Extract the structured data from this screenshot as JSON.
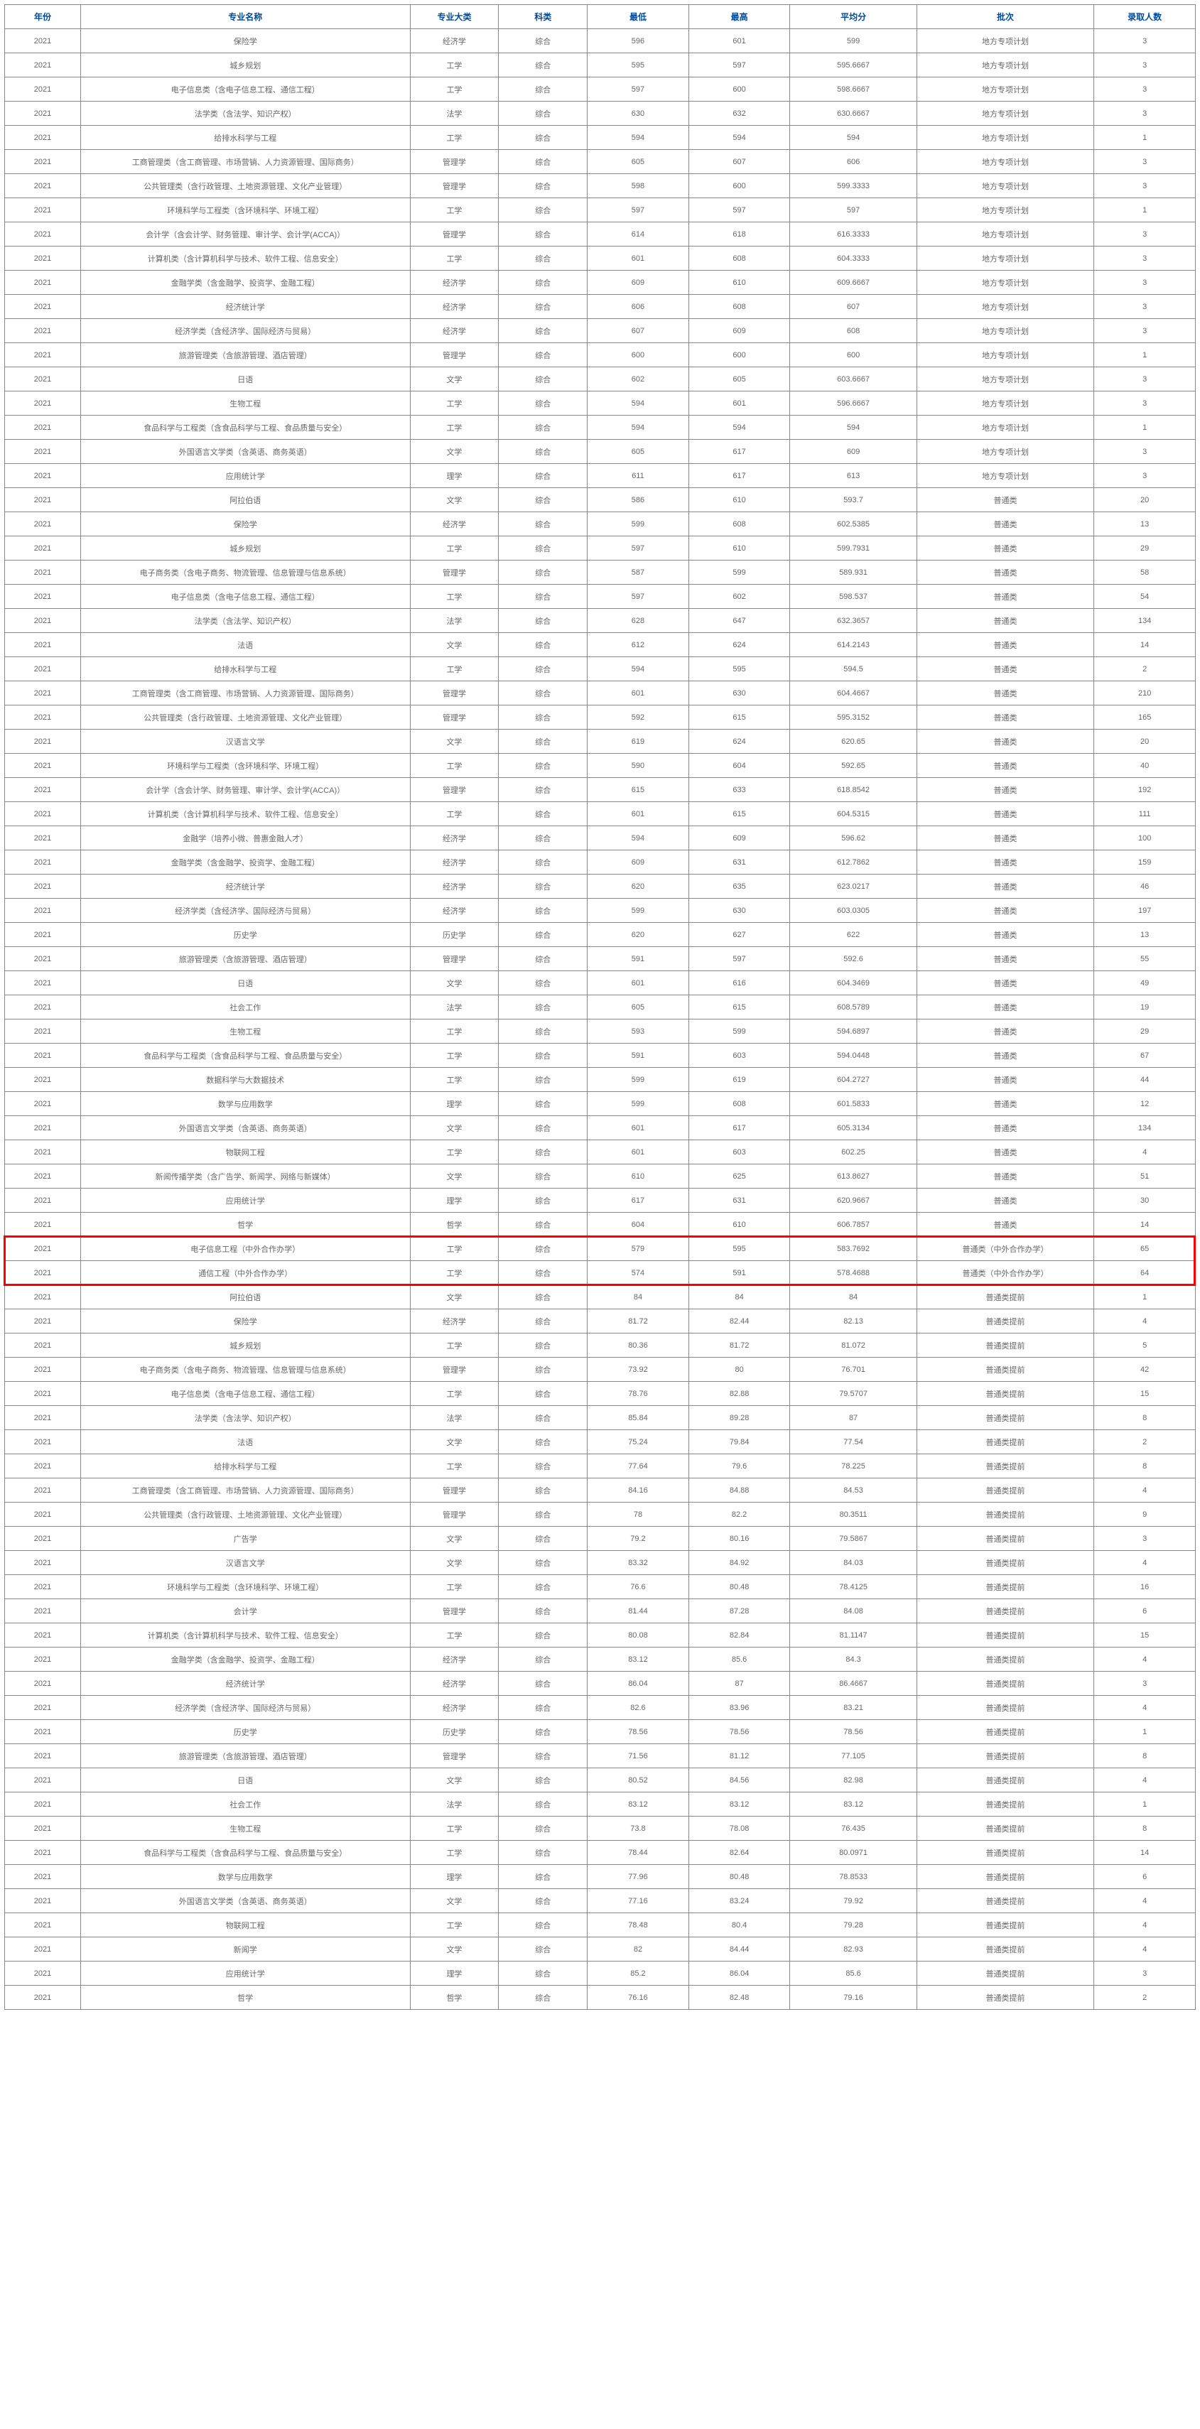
{
  "columns": [
    "年份",
    "专业名称",
    "专业大类",
    "科类",
    "最低",
    "最高",
    "平均分",
    "批次",
    "录取人数"
  ],
  "highlightStart": 56,
  "highlightCount": 2,
  "rows": [
    [
      "2021",
      "保险学",
      "经济学",
      "综合",
      "596",
      "601",
      "599",
      "地方专项计划",
      "3"
    ],
    [
      "2021",
      "城乡规划",
      "工学",
      "综合",
      "595",
      "597",
      "595.6667",
      "地方专项计划",
      "3"
    ],
    [
      "2021",
      "电子信息类（含电子信息工程、通信工程）",
      "工学",
      "综合",
      "597",
      "600",
      "598.6667",
      "地方专项计划",
      "3"
    ],
    [
      "2021",
      "法学类（含法学、知识产权）",
      "法学",
      "综合",
      "630",
      "632",
      "630.6667",
      "地方专项计划",
      "3"
    ],
    [
      "2021",
      "给排水科学与工程",
      "工学",
      "综合",
      "594",
      "594",
      "594",
      "地方专项计划",
      "1"
    ],
    [
      "2021",
      "工商管理类（含工商管理、市场营销、人力资源管理、国际商务）",
      "管理学",
      "综合",
      "605",
      "607",
      "606",
      "地方专项计划",
      "3"
    ],
    [
      "2021",
      "公共管理类（含行政管理、土地资源管理、文化产业管理）",
      "管理学",
      "综合",
      "598",
      "600",
      "599.3333",
      "地方专项计划",
      "3"
    ],
    [
      "2021",
      "环境科学与工程类（含环境科学、环境工程）",
      "工学",
      "综合",
      "597",
      "597",
      "597",
      "地方专项计划",
      "1"
    ],
    [
      "2021",
      "会计学（含会计学、财务管理、审计学、会计学(ACCA)）",
      "管理学",
      "综合",
      "614",
      "618",
      "616.3333",
      "地方专项计划",
      "3"
    ],
    [
      "2021",
      "计算机类（含计算机科学与技术、软件工程、信息安全）",
      "工学",
      "综合",
      "601",
      "608",
      "604.3333",
      "地方专项计划",
      "3"
    ],
    [
      "2021",
      "金融学类（含金融学、投资学、金融工程）",
      "经济学",
      "综合",
      "609",
      "610",
      "609.6667",
      "地方专项计划",
      "3"
    ],
    [
      "2021",
      "经济统计学",
      "经济学",
      "综合",
      "606",
      "608",
      "607",
      "地方专项计划",
      "3"
    ],
    [
      "2021",
      "经济学类（含经济学、国际经济与贸易）",
      "经济学",
      "综合",
      "607",
      "609",
      "608",
      "地方专项计划",
      "3"
    ],
    [
      "2021",
      "旅游管理类（含旅游管理、酒店管理）",
      "管理学",
      "综合",
      "600",
      "600",
      "600",
      "地方专项计划",
      "1"
    ],
    [
      "2021",
      "日语",
      "文学",
      "综合",
      "602",
      "605",
      "603.6667",
      "地方专项计划",
      "3"
    ],
    [
      "2021",
      "生物工程",
      "工学",
      "综合",
      "594",
      "601",
      "596.6667",
      "地方专项计划",
      "3"
    ],
    [
      "2021",
      "食品科学与工程类（含食品科学与工程、食品质量与安全）",
      "工学",
      "综合",
      "594",
      "594",
      "594",
      "地方专项计划",
      "1"
    ],
    [
      "2021",
      "外国语言文学类（含英语、商务英语）",
      "文学",
      "综合",
      "605",
      "617",
      "609",
      "地方专项计划",
      "3"
    ],
    [
      "2021",
      "应用统计学",
      "理学",
      "综合",
      "611",
      "617",
      "613",
      "地方专项计划",
      "3"
    ],
    [
      "2021",
      "阿拉伯语",
      "文学",
      "综合",
      "586",
      "610",
      "593.7",
      "普通类",
      "20"
    ],
    [
      "2021",
      "保险学",
      "经济学",
      "综合",
      "599",
      "608",
      "602.5385",
      "普通类",
      "13"
    ],
    [
      "2021",
      "城乡规划",
      "工学",
      "综合",
      "597",
      "610",
      "599.7931",
      "普通类",
      "29"
    ],
    [
      "2021",
      "电子商务类（含电子商务、物流管理、信息管理与信息系统）",
      "管理学",
      "综合",
      "587",
      "599",
      "589.931",
      "普通类",
      "58"
    ],
    [
      "2021",
      "电子信息类（含电子信息工程、通信工程）",
      "工学",
      "综合",
      "597",
      "602",
      "598.537",
      "普通类",
      "54"
    ],
    [
      "2021",
      "法学类（含法学、知识产权）",
      "法学",
      "综合",
      "628",
      "647",
      "632.3657",
      "普通类",
      "134"
    ],
    [
      "2021",
      "法语",
      "文学",
      "综合",
      "612",
      "624",
      "614.2143",
      "普通类",
      "14"
    ],
    [
      "2021",
      "给排水科学与工程",
      "工学",
      "综合",
      "594",
      "595",
      "594.5",
      "普通类",
      "2"
    ],
    [
      "2021",
      "工商管理类（含工商管理、市场营销、人力资源管理、国际商务）",
      "管理学",
      "综合",
      "601",
      "630",
      "604.4667",
      "普通类",
      "210"
    ],
    [
      "2021",
      "公共管理类（含行政管理、土地资源管理、文化产业管理）",
      "管理学",
      "综合",
      "592",
      "615",
      "595.3152",
      "普通类",
      "165"
    ],
    [
      "2021",
      "汉语言文学",
      "文学",
      "综合",
      "619",
      "624",
      "620.65",
      "普通类",
      "20"
    ],
    [
      "2021",
      "环境科学与工程类（含环境科学、环境工程）",
      "工学",
      "综合",
      "590",
      "604",
      "592.65",
      "普通类",
      "40"
    ],
    [
      "2021",
      "会计学（含会计学、财务管理、审计学、会计学(ACCA)）",
      "管理学",
      "综合",
      "615",
      "633",
      "618.8542",
      "普通类",
      "192"
    ],
    [
      "2021",
      "计算机类（含计算机科学与技术、软件工程、信息安全）",
      "工学",
      "综合",
      "601",
      "615",
      "604.5315",
      "普通类",
      "111"
    ],
    [
      "2021",
      "金融学（培养小微、普惠金融人才）",
      "经济学",
      "综合",
      "594",
      "609",
      "596.62",
      "普通类",
      "100"
    ],
    [
      "2021",
      "金融学类（含金融学、投资学、金融工程）",
      "经济学",
      "综合",
      "609",
      "631",
      "612.7862",
      "普通类",
      "159"
    ],
    [
      "2021",
      "经济统计学",
      "经济学",
      "综合",
      "620",
      "635",
      "623.0217",
      "普通类",
      "46"
    ],
    [
      "2021",
      "经济学类（含经济学、国际经济与贸易）",
      "经济学",
      "综合",
      "599",
      "630",
      "603.0305",
      "普通类",
      "197"
    ],
    [
      "2021",
      "历史学",
      "历史学",
      "综合",
      "620",
      "627",
      "622",
      "普通类",
      "13"
    ],
    [
      "2021",
      "旅游管理类（含旅游管理、酒店管理）",
      "管理学",
      "综合",
      "591",
      "597",
      "592.6",
      "普通类",
      "55"
    ],
    [
      "2021",
      "日语",
      "文学",
      "综合",
      "601",
      "616",
      "604.3469",
      "普通类",
      "49"
    ],
    [
      "2021",
      "社会工作",
      "法学",
      "综合",
      "605",
      "615",
      "608.5789",
      "普通类",
      "19"
    ],
    [
      "2021",
      "生物工程",
      "工学",
      "综合",
      "593",
      "599",
      "594.6897",
      "普通类",
      "29"
    ],
    [
      "2021",
      "食品科学与工程类（含食品科学与工程、食品质量与安全）",
      "工学",
      "综合",
      "591",
      "603",
      "594.0448",
      "普通类",
      "67"
    ],
    [
      "2021",
      "数据科学与大数据技术",
      "工学",
      "综合",
      "599",
      "619",
      "604.2727",
      "普通类",
      "44"
    ],
    [
      "2021",
      "数学与应用数学",
      "理学",
      "综合",
      "599",
      "608",
      "601.5833",
      "普通类",
      "12"
    ],
    [
      "2021",
      "外国语言文学类（含英语、商务英语）",
      "文学",
      "综合",
      "601",
      "617",
      "605.3134",
      "普通类",
      "134"
    ],
    [
      "2021",
      "物联网工程",
      "工学",
      "综合",
      "601",
      "603",
      "602.25",
      "普通类",
      "4"
    ],
    [
      "2021",
      "新闻传播学类（含广告学、新闻学、网络与新媒体）",
      "文学",
      "综合",
      "610",
      "625",
      "613.8627",
      "普通类",
      "51"
    ],
    [
      "2021",
      "应用统计学",
      "理学",
      "综合",
      "617",
      "631",
      "620.9667",
      "普通类",
      "30"
    ],
    [
      "2021",
      "哲学",
      "哲学",
      "综合",
      "604",
      "610",
      "606.7857",
      "普通类",
      "14"
    ],
    [
      "2021",
      "电子信息工程（中外合作办学）",
      "工学",
      "综合",
      "579",
      "595",
      "583.7692",
      "普通类（中外合作办学）",
      "65"
    ],
    [
      "2021",
      "通信工程（中外合作办学）",
      "工学",
      "综合",
      "574",
      "591",
      "578.4688",
      "普通类（中外合作办学）",
      "64"
    ],
    [
      "2021",
      "阿拉伯语",
      "文学",
      "综合",
      "84",
      "84",
      "84",
      "普通类提前",
      "1"
    ],
    [
      "2021",
      "保险学",
      "经济学",
      "综合",
      "81.72",
      "82.44",
      "82.13",
      "普通类提前",
      "4"
    ],
    [
      "2021",
      "城乡规划",
      "工学",
      "综合",
      "80.36",
      "81.72",
      "81.072",
      "普通类提前",
      "5"
    ],
    [
      "2021",
      "电子商务类（含电子商务、物流管理、信息管理与信息系统）",
      "管理学",
      "综合",
      "73.92",
      "80",
      "76.701",
      "普通类提前",
      "42"
    ],
    [
      "2021",
      "电子信息类（含电子信息工程、通信工程）",
      "工学",
      "综合",
      "78.76",
      "82.88",
      "79.5707",
      "普通类提前",
      "15"
    ],
    [
      "2021",
      "法学类（含法学、知识产权）",
      "法学",
      "综合",
      "85.84",
      "89.28",
      "87",
      "普通类提前",
      "8"
    ],
    [
      "2021",
      "法语",
      "文学",
      "综合",
      "75.24",
      "79.84",
      "77.54",
      "普通类提前",
      "2"
    ],
    [
      "2021",
      "给排水科学与工程",
      "工学",
      "综合",
      "77.64",
      "79.6",
      "78.225",
      "普通类提前",
      "8"
    ],
    [
      "2021",
      "工商管理类（含工商管理、市场营销、人力资源管理、国际商务）",
      "管理学",
      "综合",
      "84.16",
      "84.88",
      "84.53",
      "普通类提前",
      "4"
    ],
    [
      "2021",
      "公共管理类（含行政管理、土地资源管理、文化产业管理）",
      "管理学",
      "综合",
      "78",
      "82.2",
      "80.3511",
      "普通类提前",
      "9"
    ],
    [
      "2021",
      "广告学",
      "文学",
      "综合",
      "79.2",
      "80.16",
      "79.5867",
      "普通类提前",
      "3"
    ],
    [
      "2021",
      "汉语言文学",
      "文学",
      "综合",
      "83.32",
      "84.92",
      "84.03",
      "普通类提前",
      "4"
    ],
    [
      "2021",
      "环境科学与工程类（含环境科学、环境工程）",
      "工学",
      "综合",
      "76.6",
      "80.48",
      "78.4125",
      "普通类提前",
      "16"
    ],
    [
      "2021",
      "会计学",
      "管理学",
      "综合",
      "81.44",
      "87.28",
      "84.08",
      "普通类提前",
      "6"
    ],
    [
      "2021",
      "计算机类（含计算机科学与技术、软件工程、信息安全）",
      "工学",
      "综合",
      "80.08",
      "82.84",
      "81.1147",
      "普通类提前",
      "15"
    ],
    [
      "2021",
      "金融学类（含金融学、投资学、金融工程）",
      "经济学",
      "综合",
      "83.12",
      "85.6",
      "84.3",
      "普通类提前",
      "4"
    ],
    [
      "2021",
      "经济统计学",
      "经济学",
      "综合",
      "86.04",
      "87",
      "86.4667",
      "普通类提前",
      "3"
    ],
    [
      "2021",
      "经济学类（含经济学、国际经济与贸易）",
      "经济学",
      "综合",
      "82.6",
      "83.96",
      "83.21",
      "普通类提前",
      "4"
    ],
    [
      "2021",
      "历史学",
      "历史学",
      "综合",
      "78.56",
      "78.56",
      "78.56",
      "普通类提前",
      "1"
    ],
    [
      "2021",
      "旅游管理类（含旅游管理、酒店管理）",
      "管理学",
      "综合",
      "71.56",
      "81.12",
      "77.105",
      "普通类提前",
      "8"
    ],
    [
      "2021",
      "日语",
      "文学",
      "综合",
      "80.52",
      "84.56",
      "82.98",
      "普通类提前",
      "4"
    ],
    [
      "2021",
      "社会工作",
      "法学",
      "综合",
      "83.12",
      "83.12",
      "83.12",
      "普通类提前",
      "1"
    ],
    [
      "2021",
      "生物工程",
      "工学",
      "综合",
      "73.8",
      "78.08",
      "76.435",
      "普通类提前",
      "8"
    ],
    [
      "2021",
      "食品科学与工程类（含食品科学与工程、食品质量与安全）",
      "工学",
      "综合",
      "78.44",
      "82.64",
      "80.0971",
      "普通类提前",
      "14"
    ],
    [
      "2021",
      "数学与应用数学",
      "理学",
      "综合",
      "77.96",
      "80.48",
      "78.8533",
      "普通类提前",
      "6"
    ],
    [
      "2021",
      "外国语言文学类（含英语、商务英语）",
      "文学",
      "综合",
      "77.16",
      "83.24",
      "79.92",
      "普通类提前",
      "4"
    ],
    [
      "2021",
      "物联网工程",
      "工学",
      "综合",
      "78.48",
      "80.4",
      "79.28",
      "普通类提前",
      "4"
    ],
    [
      "2021",
      "新闻学",
      "文学",
      "综合",
      "82",
      "84.44",
      "82.93",
      "普通类提前",
      "4"
    ],
    [
      "2021",
      "应用统计学",
      "理学",
      "综合",
      "85.2",
      "86.04",
      "85.6",
      "普通类提前",
      "3"
    ],
    [
      "2021",
      "哲学",
      "哲学",
      "综合",
      "76.16",
      "82.48",
      "79.16",
      "普通类提前",
      "2"
    ]
  ]
}
